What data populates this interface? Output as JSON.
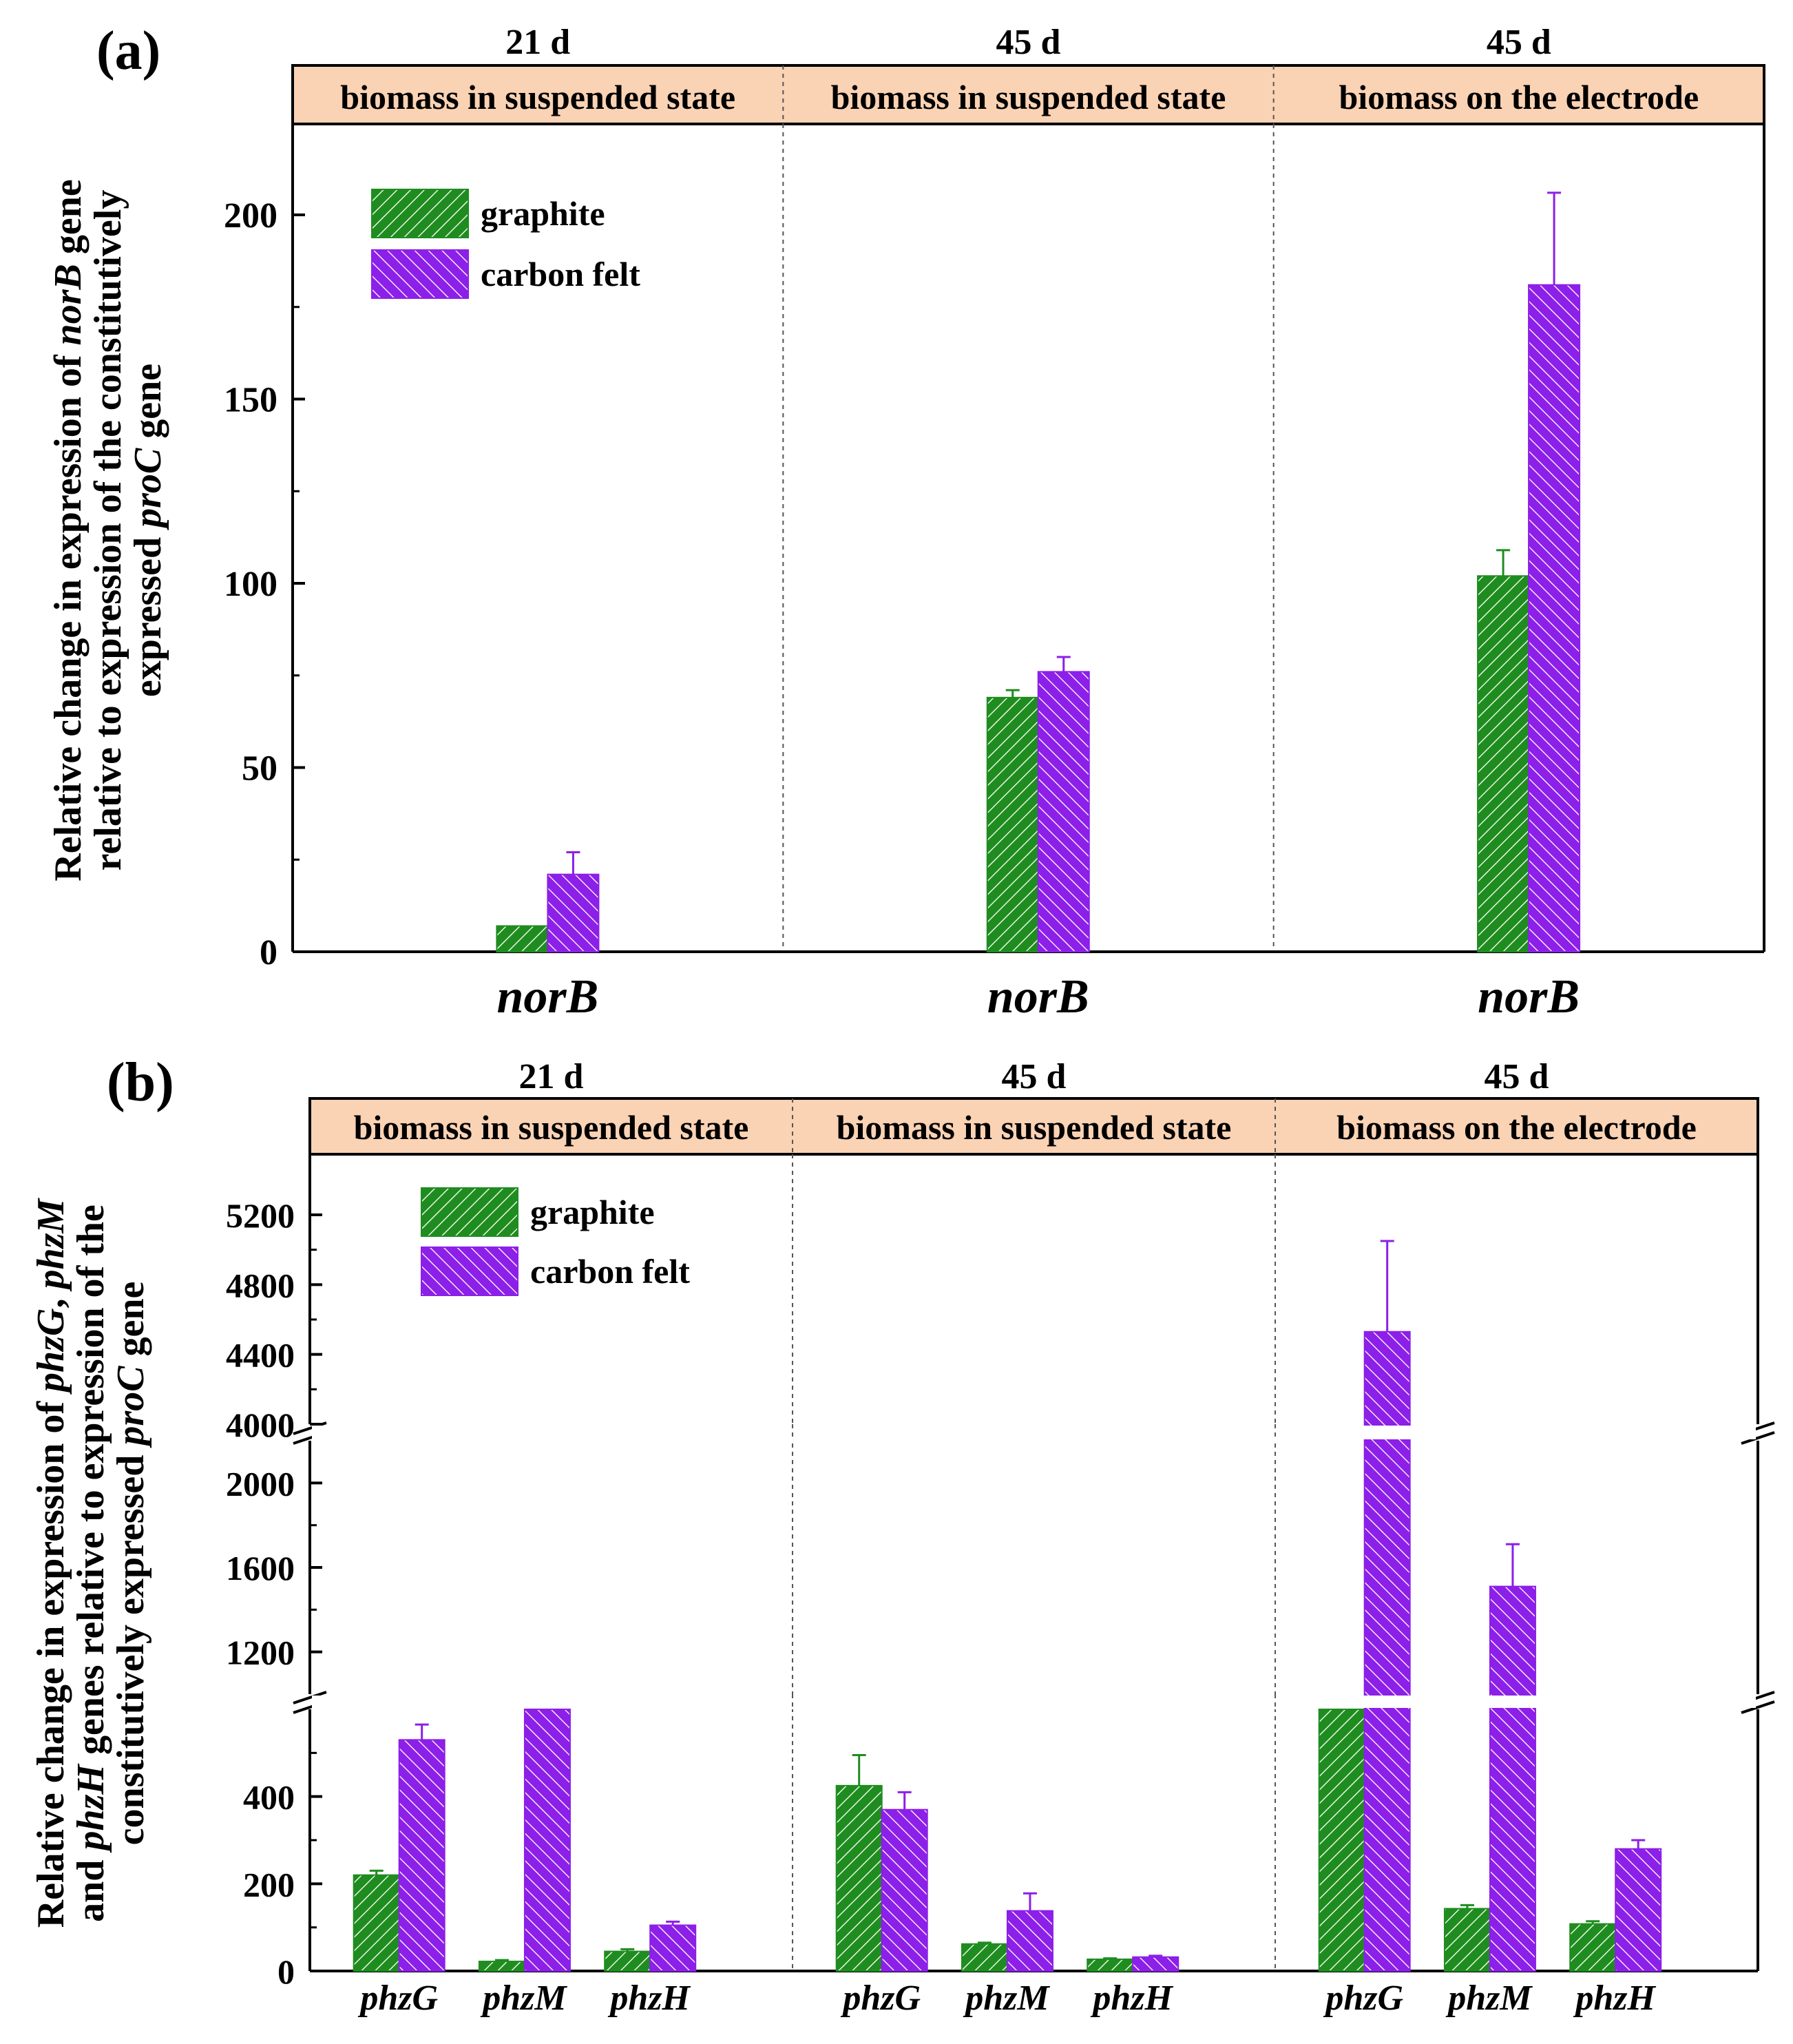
{
  "colors": {
    "graphite": "#1f8c1f",
    "carbon_felt": "#8c1fe8",
    "header_fill": "#fad2b4"
  },
  "legend": {
    "graphite": "graphite",
    "carbon_felt": "carbon felt"
  },
  "chart_data": [
    {
      "type": "bar",
      "panel_label": "(a)",
      "ylabel": {
        "line1": [
          "Relative change in expression of ",
          "norB",
          " gene"
        ],
        "line2": [
          "relative to expression of the constitutively"
        ],
        "line3": [
          "expressed ",
          "proC",
          " gene"
        ]
      },
      "ylim": [
        0,
        220
      ],
      "yticks": [
        0,
        50,
        100,
        150,
        200
      ],
      "groups": [
        {
          "time": "21 d",
          "header": "biomass in suspended state",
          "categories": [
            "norB"
          ],
          "series": [
            {
              "name": "graphite",
              "values": [
                7
              ],
              "errors": [
                0
              ]
            },
            {
              "name": "carbon felt",
              "values": [
                21
              ],
              "errors": [
                6
              ]
            }
          ]
        },
        {
          "time": "45 d",
          "header": "biomass in suspended state",
          "categories": [
            "norB"
          ],
          "series": [
            {
              "name": "graphite",
              "values": [
                69
              ],
              "errors": [
                2
              ]
            },
            {
              "name": "carbon felt",
              "values": [
                76
              ],
              "errors": [
                4
              ]
            }
          ]
        },
        {
          "time": "45 d",
          "header": "biomass on the electrode",
          "categories": [
            "norB"
          ],
          "series": [
            {
              "name": "graphite",
              "values": [
                102
              ],
              "errors": [
                7
              ]
            },
            {
              "name": "carbon felt",
              "values": [
                181
              ],
              "errors": [
                25
              ]
            }
          ]
        }
      ]
    },
    {
      "type": "bar",
      "panel_label": "(b)",
      "ylabel": {
        "line1": [
          "Relative change in expression of ",
          "phzG",
          ", ",
          "phzM"
        ],
        "line2": [
          "and ",
          "phzH",
          " genes relative to expression of the"
        ],
        "line3": [
          "constitutively expressed ",
          "proC",
          " gene"
        ]
      },
      "y_breaks": [
        [
          600,
          1000
        ],
        [
          2200,
          4000
        ]
      ],
      "yticks": [
        0,
        200,
        400,
        1200,
        1600,
        2000,
        4000,
        4400,
        4800,
        5200
      ],
      "groups": [
        {
          "time": "21 d",
          "header": "biomass in suspended state",
          "categories": [
            "phzG",
            "phzM",
            "phzH"
          ],
          "series": [
            {
              "name": "graphite",
              "values": [
                220,
                22,
                45
              ],
              "errors": [
                10,
                3,
                5
              ]
            },
            {
              "name": "carbon felt",
              "values": [
                530,
                600,
                105
              ],
              "errors": [
                35,
                0,
                8
              ]
            }
          ]
        },
        {
          "time": "45 d",
          "header": "biomass in suspended state",
          "categories": [
            "phzG",
            "phzM",
            "phzH"
          ],
          "series": [
            {
              "name": "graphite",
              "values": [
                425,
                62,
                27
              ],
              "errors": [
                70,
                3,
                2
              ]
            },
            {
              "name": "carbon felt",
              "values": [
                370,
                138,
                32
              ],
              "errors": [
                40,
                40,
                3
              ]
            }
          ]
        },
        {
          "time": "45 d",
          "header": "biomass on the electrode",
          "categories": [
            "phzG",
            "phzM",
            "phzH"
          ],
          "series": [
            {
              "name": "graphite",
              "values": [
                600,
                143,
                108
              ],
              "errors": [
                0,
                8,
                6
              ]
            },
            {
              "name": "carbon felt",
              "values": [
                4530,
                1510,
                280
              ],
              "errors": [
                520,
                200,
                20
              ]
            }
          ]
        }
      ]
    }
  ]
}
